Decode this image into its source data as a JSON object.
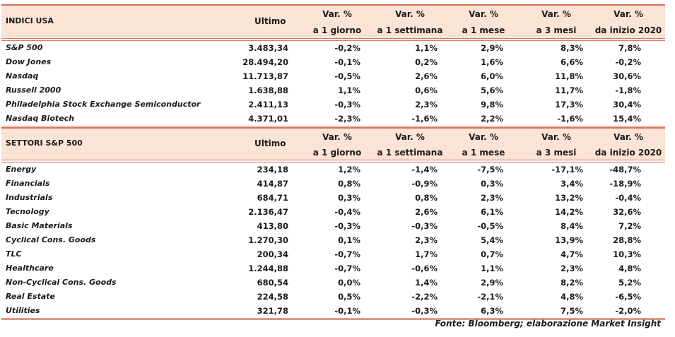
{
  "usa": {
    "title": "INDICI USA",
    "col_ultimo": "Ultimo",
    "cols": [
      {
        "l1": "Var. %",
        "l2": "a 1 giorno"
      },
      {
        "l1": "Var. %",
        "l2": "a 1 settimana"
      },
      {
        "l1": "Var. %",
        "l2": "a 1 mese"
      },
      {
        "l1": "Var. %",
        "l2": "a 3 mesi"
      },
      {
        "l1": "Var. %",
        "l2": "da inizio 2020"
      }
    ],
    "rows": [
      {
        "name": "S&P 500",
        "ultimo": "3.483,34",
        "d1": "-0,2%",
        "w1": "1,1%",
        "m1": "2,9%",
        "m3": "8,3%",
        "ytd": "7,8%"
      },
      {
        "name": "Dow Jones",
        "ultimo": "28.494,20",
        "d1": "-0,1%",
        "w1": "0,2%",
        "m1": "1,6%",
        "m3": "6,6%",
        "ytd": "-0,2%"
      },
      {
        "name": "Nasdaq",
        "ultimo": "11.713,87",
        "d1": "-0,5%",
        "w1": "2,6%",
        "m1": "6,0%",
        "m3": "11,8%",
        "ytd": "30,6%"
      },
      {
        "name": "Russell 2000",
        "ultimo": "1.638,88",
        "d1": "1,1%",
        "w1": "0,6%",
        "m1": "5,6%",
        "m3": "11,7%",
        "ytd": "-1,8%"
      },
      {
        "name": "Philadelphia Stock Exchange Semiconductor",
        "ultimo": "2.411,13",
        "d1": "-0,3%",
        "w1": "2,3%",
        "m1": "9,8%",
        "m3": "17,3%",
        "ytd": "30,4%"
      },
      {
        "name": "Nasdaq Biotech",
        "ultimo": "4.371,01",
        "d1": "-2,3%",
        "w1": "-1,6%",
        "m1": "2,2%",
        "m3": "-1,6%",
        "ytd": "15,4%"
      }
    ]
  },
  "sectors": {
    "title": "SETTORI S&P 500",
    "col_ultimo": "Ultimo",
    "cols": [
      {
        "l1": "Var. %",
        "l2": "a 1 giorno"
      },
      {
        "l1": "Var. %",
        "l2": "a 1 settimana"
      },
      {
        "l1": "Var. %",
        "l2": "a 1 mese"
      },
      {
        "l1": "Var. %",
        "l2": "a 3 mesi"
      },
      {
        "l1": "Var. %",
        "l2": "da inizio 2020"
      }
    ],
    "rows": [
      {
        "name": "Energy",
        "ultimo": "234,18",
        "d1": "1,2%",
        "w1": "-1,4%",
        "m1": "-7,5%",
        "m3": "-17,1%",
        "ytd": "-48,7%"
      },
      {
        "name": "Financials",
        "ultimo": "414,87",
        "d1": "0,8%",
        "w1": "-0,9%",
        "m1": "0,3%",
        "m3": "3,4%",
        "ytd": "-18,9%"
      },
      {
        "name": "Industrials",
        "ultimo": "684,71",
        "d1": "0,3%",
        "w1": "0,8%",
        "m1": "2,3%",
        "m3": "13,2%",
        "ytd": "-0,4%"
      },
      {
        "name": "Tecnology",
        "ultimo": "2.136,47",
        "d1": "-0,4%",
        "w1": "2,6%",
        "m1": "6,1%",
        "m3": "14,2%",
        "ytd": "32,6%"
      },
      {
        "name": "Basic Materials",
        "ultimo": "413,80",
        "d1": "-0,3%",
        "w1": "-0,3%",
        "m1": "-0,5%",
        "m3": "8,4%",
        "ytd": "7,2%"
      },
      {
        "name": "Cyclical Cons. Goods",
        "ultimo": "1.270,30",
        "d1": "0,1%",
        "w1": "2,3%",
        "m1": "5,4%",
        "m3": "13,9%",
        "ytd": "28,8%"
      },
      {
        "name": "TLC",
        "ultimo": "200,34",
        "d1": "-0,7%",
        "w1": "1,7%",
        "m1": "0,7%",
        "m3": "4,7%",
        "ytd": "10,3%"
      },
      {
        "name": "Healthcare",
        "ultimo": "1.244,88",
        "d1": "-0,7%",
        "w1": "-0,6%",
        "m1": "1,1%",
        "m3": "2,3%",
        "ytd": "4,8%"
      },
      {
        "name": "Non-Cyclical Cons. Goods",
        "ultimo": "680,54",
        "d1": "0,0%",
        "w1": "1,4%",
        "m1": "2,9%",
        "m3": "8,2%",
        "ytd": "5,2%"
      },
      {
        "name": "Real Estate",
        "ultimo": "224,58",
        "d1": "0,5%",
        "w1": "-2,2%",
        "m1": "-2,1%",
        "m3": "4,8%",
        "ytd": "-6,5%"
      },
      {
        "name": "Utilities",
        "ultimo": "321,78",
        "d1": "-0,1%",
        "w1": "-0,3%",
        "m1": "6,3%",
        "m3": "7,5%",
        "ytd": "-2,0%"
      }
    ]
  },
  "source": "Fonte: Bloomberg; elaborazione Market Insight",
  "colors": {
    "header_bg": "#fbe3d6",
    "rule": "#d9735a"
  }
}
